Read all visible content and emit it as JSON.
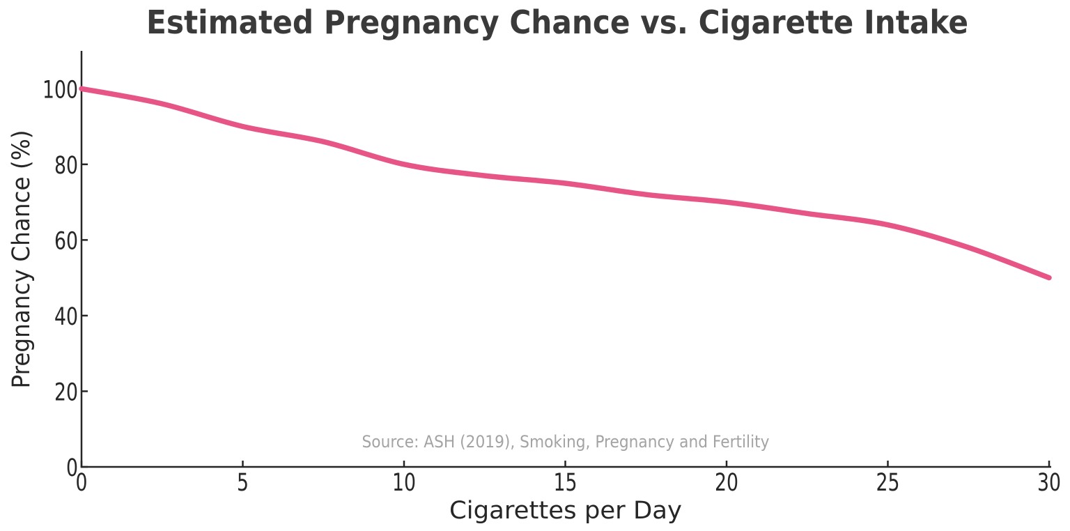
{
  "chart_data": {
    "type": "line",
    "title": "Estimated Pregnancy Chance vs. Cigarette Intake",
    "xlabel": "Cigarettes per Day",
    "ylabel": "Pregnancy Chance (%)",
    "source_note": "Source: ASH (2019), Smoking, Pregnancy and Fertility",
    "x": [
      0,
      2.5,
      5,
      7.5,
      10,
      12.5,
      15,
      17.5,
      20,
      22.5,
      25,
      27.5,
      30
    ],
    "y": [
      100,
      96,
      90,
      86,
      80,
      77,
      75,
      72,
      70,
      67,
      64,
      58,
      50
    ],
    "key_points": {
      "cigarettes_per_day": [
        0,
        5,
        10,
        15,
        20,
        25,
        30
      ],
      "pregnancy_chance_pct": [
        100,
        90,
        80,
        75,
        70,
        64,
        50
      ]
    },
    "xlim": [
      0,
      30
    ],
    "ylim": [
      0,
      110
    ],
    "xticks": [
      0,
      5,
      10,
      15,
      20,
      25,
      30
    ],
    "yticks": [
      0,
      20,
      40,
      60,
      80,
      100
    ],
    "grid": false,
    "legend": "none",
    "line_color": "#e65585",
    "line_width": 7.5
  },
  "colors": {
    "title": "#3a3a3a",
    "tick_label": "#262626",
    "axis_label": "#262626",
    "spine": "#262626",
    "source": "#a3a3a3",
    "background": "#ffffff"
  }
}
